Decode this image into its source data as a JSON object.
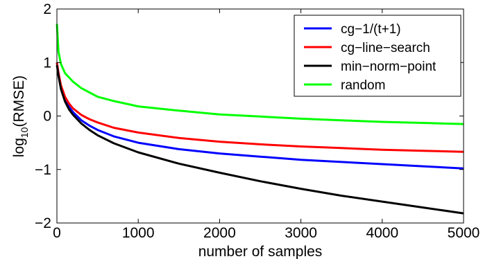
{
  "chart_data": {
    "type": "line",
    "xlabel": "number of samples",
    "ylabel_main": "log",
    "ylabel_sub": "10",
    "ylabel_rest": "(RMSE)",
    "xlim": [
      0,
      5000
    ],
    "ylim": [
      -2,
      2
    ],
    "xticks": [
      0,
      1000,
      2000,
      3000,
      4000,
      5000
    ],
    "yticks": [
      -2,
      -1,
      0,
      1,
      2
    ],
    "xtick_labels": [
      "0",
      "1000",
      "2000",
      "3000",
      "4000",
      "5000"
    ],
    "ytick_labels": [
      "−2",
      "−1",
      "0",
      "1",
      "2"
    ],
    "grid": false,
    "legend_position": "top-right",
    "series": [
      {
        "name": "cg−1/(t+1)",
        "color": "#0000ff",
        "x": [
          0,
          20,
          50,
          100,
          150,
          200,
          300,
          400,
          500,
          700,
          1000,
          1500,
          2000,
          2500,
          3000,
          3500,
          4000,
          4500,
          5000
        ],
        "y": [
          1.0,
          0.8,
          0.55,
          0.32,
          0.17,
          0.07,
          -0.08,
          -0.18,
          -0.26,
          -0.38,
          -0.5,
          -0.62,
          -0.7,
          -0.76,
          -0.82,
          -0.86,
          -0.9,
          -0.94,
          -0.98
        ]
      },
      {
        "name": "cg−line−search",
        "color": "#ff0000",
        "x": [
          0,
          20,
          50,
          100,
          150,
          200,
          300,
          400,
          500,
          700,
          1000,
          1500,
          2000,
          2500,
          3000,
          3500,
          4000,
          4500,
          5000
        ],
        "y": [
          1.0,
          0.8,
          0.57,
          0.36,
          0.23,
          0.14,
          0.02,
          -0.06,
          -0.12,
          -0.22,
          -0.31,
          -0.41,
          -0.48,
          -0.53,
          -0.57,
          -0.6,
          -0.63,
          -0.65,
          -0.67
        ]
      },
      {
        "name": "min−norm−point",
        "color": "#000000",
        "x": [
          0,
          20,
          50,
          100,
          150,
          200,
          300,
          400,
          500,
          700,
          1000,
          1500,
          2000,
          2500,
          3000,
          3500,
          4000,
          4500,
          5000
        ],
        "y": [
          0.95,
          0.75,
          0.5,
          0.27,
          0.12,
          0.02,
          -0.14,
          -0.26,
          -0.36,
          -0.51,
          -0.68,
          -0.89,
          -1.06,
          -1.22,
          -1.36,
          -1.49,
          -1.6,
          -1.71,
          -1.82
        ]
      },
      {
        "name": "random",
        "color": "#00ff00",
        "x": [
          0,
          20,
          50,
          100,
          150,
          200,
          300,
          400,
          500,
          700,
          1000,
          1500,
          2000,
          2500,
          3000,
          3500,
          4000,
          4500,
          5000
        ],
        "y": [
          1.72,
          1.2,
          0.97,
          0.8,
          0.72,
          0.64,
          0.52,
          0.44,
          0.36,
          0.28,
          0.18,
          0.1,
          0.03,
          -0.01,
          -0.05,
          -0.08,
          -0.11,
          -0.13,
          -0.15
        ]
      }
    ]
  }
}
